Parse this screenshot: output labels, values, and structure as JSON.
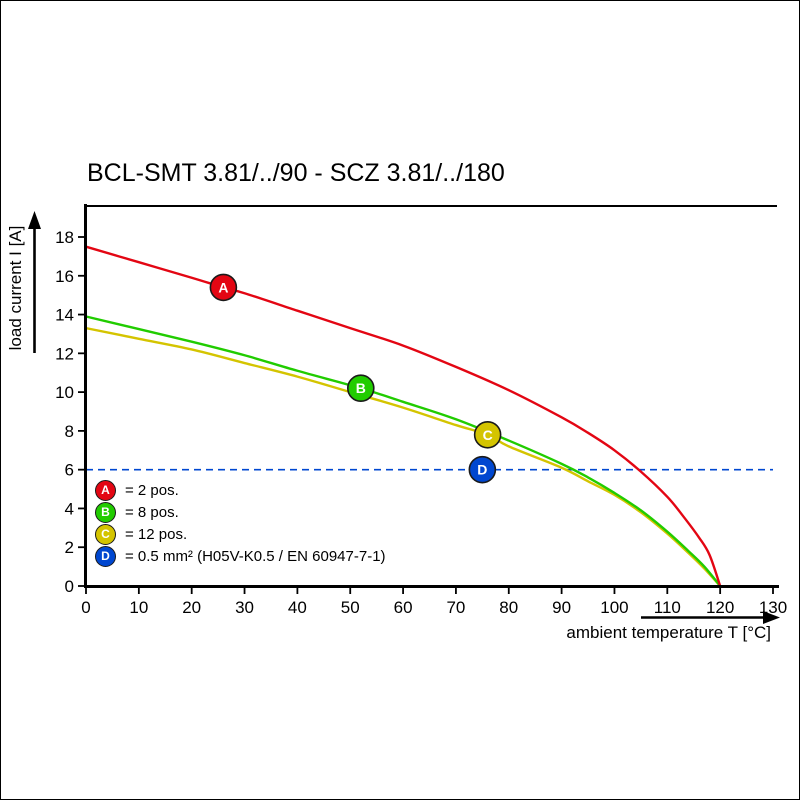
{
  "title": "BCL-SMT 3.81/../90 - SCZ 3.81/../180",
  "chart_data": {
    "type": "line",
    "title": "BCL-SMT 3.81/../90 - SCZ 3.81/../180",
    "xlabel": "ambient temperature T [°C]",
    "ylabel": "load current I [A]",
    "xlim": [
      0,
      130
    ],
    "ylim": [
      0,
      18
    ],
    "x_ticks": [
      0,
      10,
      20,
      30,
      40,
      50,
      60,
      70,
      80,
      90,
      100,
      110,
      120,
      130
    ],
    "y_ticks": [
      0,
      2,
      4,
      6,
      8,
      10,
      12,
      14,
      16,
      18
    ],
    "grid": false,
    "legend_position": "inside-lower-left",
    "series": [
      {
        "id": "A",
        "label": "= 2 pos.",
        "color": "#e30613",
        "style": "solid",
        "marker": {
          "x": 26,
          "y": 15.4
        },
        "points": [
          [
            0,
            17.5
          ],
          [
            10,
            16.7
          ],
          [
            20,
            15.9
          ],
          [
            26,
            15.4
          ],
          [
            30,
            15.1
          ],
          [
            40,
            14.2
          ],
          [
            50,
            13.3
          ],
          [
            60,
            12.4
          ],
          [
            70,
            11.3
          ],
          [
            80,
            10.1
          ],
          [
            90,
            8.7
          ],
          [
            95,
            7.9
          ],
          [
            100,
            7.0
          ],
          [
            105,
            5.9
          ],
          [
            110,
            4.6
          ],
          [
            113,
            3.6
          ],
          [
            116,
            2.5
          ],
          [
            118,
            1.6
          ],
          [
            120,
            0
          ]
        ]
      },
      {
        "id": "B",
        "label": "= 8 pos.",
        "color": "#21cc00",
        "style": "solid",
        "marker": {
          "x": 52,
          "y": 10.2
        },
        "points": [
          [
            0,
            13.9
          ],
          [
            10,
            13.25
          ],
          [
            20,
            12.6
          ],
          [
            30,
            11.9
          ],
          [
            40,
            11.1
          ],
          [
            52,
            10.2
          ],
          [
            60,
            9.5
          ],
          [
            70,
            8.6
          ],
          [
            80,
            7.5
          ],
          [
            90,
            6.3
          ],
          [
            95,
            5.6
          ],
          [
            100,
            4.8
          ],
          [
            105,
            3.9
          ],
          [
            110,
            2.8
          ],
          [
            114,
            1.8
          ],
          [
            117,
            1.0
          ],
          [
            120,
            0
          ]
        ]
      },
      {
        "id": "C",
        "label": "= 12 pos.",
        "color": "#d4c400",
        "style": "solid",
        "marker": {
          "x": 76,
          "y": 7.8
        },
        "points": [
          [
            0,
            13.3
          ],
          [
            10,
            12.75
          ],
          [
            20,
            12.2
          ],
          [
            30,
            11.5
          ],
          [
            40,
            10.8
          ],
          [
            50,
            10.0
          ],
          [
            60,
            9.2
          ],
          [
            70,
            8.3
          ],
          [
            76,
            7.8
          ],
          [
            80,
            7.2
          ],
          [
            90,
            6.1
          ],
          [
            95,
            5.4
          ],
          [
            100,
            4.7
          ],
          [
            105,
            3.8
          ],
          [
            110,
            2.7
          ],
          [
            114,
            1.7
          ],
          [
            117,
            0.9
          ],
          [
            120,
            0
          ]
        ]
      },
      {
        "id": "D",
        "label": "= 0.5 mm² (H05V-K0.5 / EN 60947-7-1)",
        "color": "#0047d0",
        "style": "dashed",
        "marker": {
          "x": 75,
          "y": 6.0
        },
        "points": [
          [
            0,
            6
          ],
          [
            130,
            6
          ]
        ]
      }
    ]
  }
}
